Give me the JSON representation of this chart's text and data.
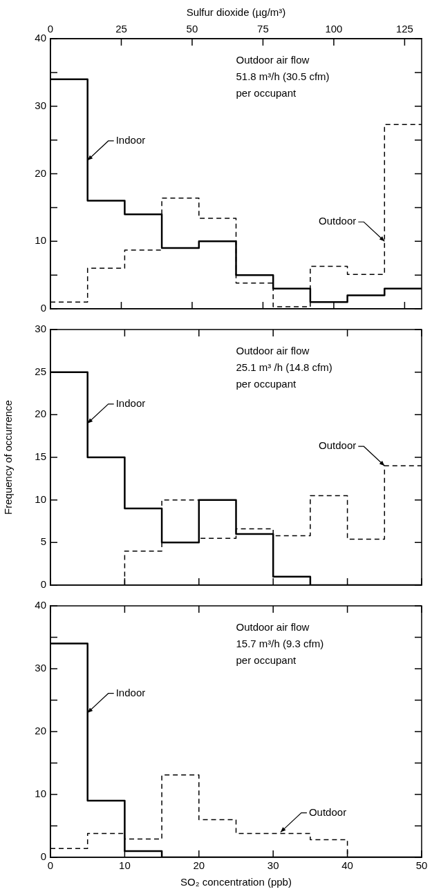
{
  "chart_data": [
    {
      "type": "histogram",
      "x2label": "Sulfur dioxide (µg/m³)",
      "bins": [
        0,
        5,
        10,
        15,
        20,
        25,
        30,
        35,
        40,
        45,
        50
      ],
      "xlim": [
        0,
        50
      ],
      "x2lim": [
        0,
        131
      ],
      "x2ticks": [
        0,
        25,
        50,
        75,
        100,
        125
      ],
      "ylim": [
        0,
        40
      ],
      "yticks": [
        0,
        {
          "value": 5,
          "label": null
        },
        10,
        {
          "value": 15,
          "label": null
        },
        20,
        {
          "value": 25,
          "label": null
        },
        30,
        {
          "value": 35,
          "label": null
        },
        40
      ],
      "tick_labels": "y",
      "series": [
        {
          "name": "Indoor",
          "color": "#000000",
          "line_style": "solid",
          "values": [
            34,
            16,
            14,
            9,
            10,
            5,
            3,
            1,
            2,
            3
          ]
        },
        {
          "name": "Outdoor",
          "color": "#000000",
          "line_style": "dashed",
          "values": [
            1,
            6,
            8.7,
            16.4,
            13.4,
            3.8,
            0.3,
            6.3,
            5.1,
            27.3
          ]
        }
      ],
      "annotations": [
        "Outdoor air flow\n51.8 m³/h (30.5 cfm)\nper occupant"
      ]
    },
    {
      "type": "histogram",
      "ylabel": "Frequency of occurrence",
      "bins": [
        0,
        5,
        10,
        15,
        20,
        25,
        30,
        35,
        40,
        45,
        50
      ],
      "xlim": [
        0,
        50
      ],
      "xticks": [
        0,
        10,
        20,
        30,
        40,
        50
      ],
      "ylim": [
        0,
        30
      ],
      "yticks": [
        0,
        5,
        10,
        15,
        20,
        25,
        30
      ],
      "tick_labels": "y",
      "series": [
        {
          "name": "Indoor",
          "color": "#000000",
          "line_style": "solid",
          "values": [
            25,
            15,
            9,
            5,
            10,
            6,
            1,
            0,
            0,
            0
          ]
        },
        {
          "name": "Outdoor",
          "color": "#000000",
          "line_style": "dashed",
          "values": [
            0,
            0,
            4,
            10,
            5.5,
            6.6,
            5.8,
            10.5,
            5.4,
            14
          ]
        }
      ],
      "annotations": [
        "Outdoor air flow\n25.1 m³ /h (14.8 cfm)\nper occupant"
      ]
    },
    {
      "type": "histogram",
      "xlabel": "SO₂ concentration (ppb)",
      "bins": [
        0,
        5,
        10,
        15,
        20,
        25,
        30,
        35,
        40,
        45,
        50
      ],
      "xlim": [
        0,
        50
      ],
      "xticks": [
        0,
        10,
        20,
        30,
        40,
        50
      ],
      "ylim": [
        0,
        40
      ],
      "yticks": [
        0,
        {
          "value": 5,
          "label": null
        },
        10,
        {
          "value": 15,
          "label": null
        },
        20,
        {
          "value": 25,
          "label": null
        },
        30,
        {
          "value": 35,
          "label": null
        },
        40
      ],
      "series": [
        {
          "name": "Indoor",
          "color": "#000000",
          "line_style": "solid",
          "values": [
            34,
            9,
            1,
            0,
            0,
            0,
            0,
            0,
            0,
            0
          ]
        },
        {
          "name": "Outdoor",
          "color": "#000000",
          "line_style": "dashed",
          "values": [
            1.4,
            3.8,
            2.9,
            13.1,
            6,
            3.8,
            3.8,
            2.8,
            0,
            0
          ]
        }
      ],
      "annotations": [
        "Outdoor air flow\n15.7 m³/h (9.3 cfm)\nper occupant"
      ]
    }
  ]
}
